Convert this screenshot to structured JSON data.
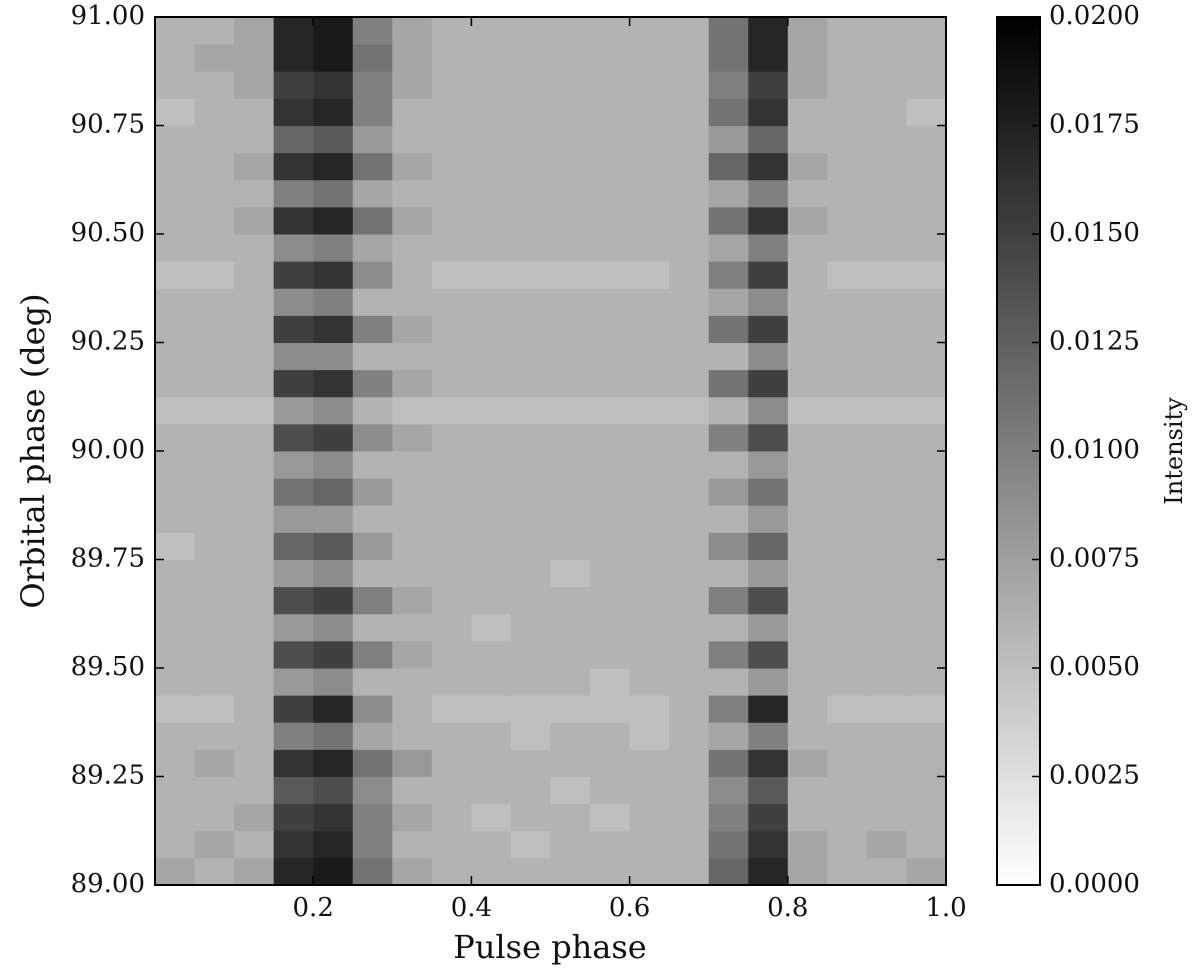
{
  "chart_data": {
    "type": "heatmap",
    "xlabel": "Pulse phase",
    "ylabel": "Orbital phase (deg)",
    "xlim": [
      0,
      1
    ],
    "ylim": [
      89,
      91
    ],
    "xticks": [
      0.2,
      0.4,
      0.6,
      0.8,
      {
        "value": 1,
        "label": "1.0"
      }
    ],
    "yticks": [
      {
        "value": 89,
        "label": "89.00"
      },
      89.25,
      {
        "value": 89.5,
        "label": "89.50"
      },
      89.75,
      {
        "value": 90,
        "label": "90.00"
      },
      90.25,
      {
        "value": 90.5,
        "label": "90.50"
      },
      90.75,
      {
        "value": 91,
        "label": "91.00"
      }
    ],
    "colormap": "Greys",
    "colorbar": {
      "label": "Intensity",
      "lim": [
        0,
        0.02
      ],
      "ticks": [
        {
          "value": 0,
          "label": "0.0000"
        },
        0.0025,
        {
          "value": 0.005,
          "label": "0.0050"
        },
        0.0075,
        {
          "value": 0.01,
          "label": "0.0100"
        },
        0.0125,
        {
          "value": 0.015,
          "label": "0.0150"
        },
        0.0175,
        {
          "value": 0.02,
          "label": "0.0200"
        }
      ]
    },
    "z": [
      [
        0.007,
        0.006,
        0.007,
        0.017,
        0.018,
        0.011,
        0.007,
        0.006,
        0.006,
        0.006,
        0.006,
        0.006,
        0.006,
        0.006,
        0.012,
        0.017,
        0.007,
        0.006,
        0.006,
        0.007
      ],
      [
        0.006,
        0.007,
        0.006,
        0.016,
        0.017,
        0.01,
        0.006,
        0.006,
        0.006,
        0.005,
        0.006,
        0.006,
        0.006,
        0.006,
        0.011,
        0.016,
        0.007,
        0.006,
        0.007,
        0.006
      ],
      [
        0.006,
        0.006,
        0.007,
        0.015,
        0.016,
        0.01,
        0.007,
        0.006,
        0.005,
        0.006,
        0.006,
        0.005,
        0.006,
        0.006,
        0.01,
        0.015,
        0.006,
        0.006,
        0.006,
        0.006
      ],
      [
        0.006,
        0.006,
        0.006,
        0.013,
        0.014,
        0.009,
        0.006,
        0.006,
        0.006,
        0.006,
        0.005,
        0.006,
        0.006,
        0.006,
        0.009,
        0.013,
        0.006,
        0.006,
        0.006,
        0.006
      ],
      [
        0.006,
        0.007,
        0.006,
        0.016,
        0.017,
        0.011,
        0.008,
        0.006,
        0.006,
        0.006,
        0.006,
        0.006,
        0.006,
        0.006,
        0.011,
        0.016,
        0.007,
        0.006,
        0.006,
        0.006
      ],
      [
        0.006,
        0.006,
        0.006,
        0.01,
        0.011,
        0.007,
        0.006,
        0.006,
        0.006,
        0.005,
        0.006,
        0.006,
        0.005,
        0.006,
        0.007,
        0.01,
        0.006,
        0.006,
        0.006,
        0.006
      ],
      [
        0.005,
        0.005,
        0.006,
        0.015,
        0.017,
        0.009,
        0.006,
        0.005,
        0.005,
        0.005,
        0.005,
        0.005,
        0.005,
        0.006,
        0.01,
        0.017,
        0.006,
        0.005,
        0.005,
        0.005
      ],
      [
        0.006,
        0.006,
        0.006,
        0.008,
        0.009,
        0.006,
        0.006,
        0.006,
        0.006,
        0.006,
        0.006,
        0.005,
        0.006,
        0.006,
        0.006,
        0.008,
        0.006,
        0.006,
        0.006,
        0.006
      ],
      [
        0.006,
        0.006,
        0.006,
        0.014,
        0.015,
        0.01,
        0.007,
        0.006,
        0.006,
        0.006,
        0.006,
        0.006,
        0.006,
        0.006,
        0.01,
        0.014,
        0.006,
        0.006,
        0.006,
        0.006
      ],
      [
        0.006,
        0.006,
        0.006,
        0.008,
        0.009,
        0.006,
        0.006,
        0.006,
        0.005,
        0.006,
        0.006,
        0.006,
        0.006,
        0.006,
        0.006,
        0.008,
        0.006,
        0.006,
        0.006,
        0.006
      ],
      [
        0.006,
        0.006,
        0.006,
        0.014,
        0.015,
        0.01,
        0.007,
        0.006,
        0.006,
        0.006,
        0.006,
        0.006,
        0.006,
        0.006,
        0.01,
        0.014,
        0.006,
        0.006,
        0.006,
        0.006
      ],
      [
        0.006,
        0.006,
        0.006,
        0.008,
        0.009,
        0.006,
        0.006,
        0.006,
        0.006,
        0.006,
        0.005,
        0.006,
        0.006,
        0.006,
        0.006,
        0.008,
        0.006,
        0.006,
        0.006,
        0.006
      ],
      [
        0.005,
        0.006,
        0.006,
        0.012,
        0.013,
        0.008,
        0.006,
        0.006,
        0.006,
        0.006,
        0.006,
        0.006,
        0.006,
        0.006,
        0.009,
        0.012,
        0.006,
        0.006,
        0.006,
        0.006
      ],
      [
        0.006,
        0.006,
        0.006,
        0.008,
        0.008,
        0.006,
        0.006,
        0.006,
        0.006,
        0.006,
        0.006,
        0.006,
        0.006,
        0.006,
        0.006,
        0.008,
        0.006,
        0.006,
        0.006,
        0.006
      ],
      [
        0.006,
        0.006,
        0.006,
        0.011,
        0.012,
        0.008,
        0.006,
        0.006,
        0.006,
        0.006,
        0.006,
        0.006,
        0.006,
        0.006,
        0.008,
        0.011,
        0.006,
        0.006,
        0.006,
        0.006
      ],
      [
        0.006,
        0.006,
        0.006,
        0.008,
        0.009,
        0.006,
        0.006,
        0.006,
        0.006,
        0.006,
        0.006,
        0.006,
        0.006,
        0.006,
        0.006,
        0.008,
        0.006,
        0.006,
        0.006,
        0.006
      ],
      [
        0.006,
        0.006,
        0.006,
        0.014,
        0.015,
        0.009,
        0.007,
        0.006,
        0.006,
        0.006,
        0.006,
        0.006,
        0.006,
        0.006,
        0.01,
        0.014,
        0.006,
        0.006,
        0.006,
        0.006
      ],
      [
        0.005,
        0.005,
        0.005,
        0.008,
        0.009,
        0.006,
        0.005,
        0.005,
        0.005,
        0.005,
        0.005,
        0.005,
        0.005,
        0.005,
        0.006,
        0.009,
        0.005,
        0.005,
        0.005,
        0.005
      ],
      [
        0.006,
        0.006,
        0.006,
        0.015,
        0.016,
        0.01,
        0.007,
        0.006,
        0.006,
        0.006,
        0.006,
        0.006,
        0.006,
        0.006,
        0.011,
        0.015,
        0.006,
        0.006,
        0.006,
        0.006
      ],
      [
        0.006,
        0.006,
        0.006,
        0.009,
        0.009,
        0.006,
        0.006,
        0.006,
        0.006,
        0.006,
        0.006,
        0.006,
        0.006,
        0.006,
        0.006,
        0.009,
        0.006,
        0.006,
        0.006,
        0.006
      ],
      [
        0.006,
        0.006,
        0.006,
        0.015,
        0.016,
        0.01,
        0.007,
        0.006,
        0.006,
        0.006,
        0.006,
        0.006,
        0.006,
        0.006,
        0.011,
        0.015,
        0.006,
        0.006,
        0.006,
        0.006
      ],
      [
        0.006,
        0.006,
        0.006,
        0.009,
        0.01,
        0.006,
        0.006,
        0.006,
        0.006,
        0.006,
        0.006,
        0.006,
        0.006,
        0.006,
        0.007,
        0.009,
        0.006,
        0.006,
        0.006,
        0.006
      ],
      [
        0.005,
        0.005,
        0.006,
        0.015,
        0.016,
        0.009,
        0.006,
        0.005,
        0.005,
        0.005,
        0.005,
        0.005,
        0.005,
        0.006,
        0.01,
        0.015,
        0.006,
        0.005,
        0.005,
        0.005
      ],
      [
        0.006,
        0.006,
        0.006,
        0.009,
        0.01,
        0.007,
        0.006,
        0.006,
        0.006,
        0.006,
        0.006,
        0.006,
        0.006,
        0.006,
        0.007,
        0.01,
        0.006,
        0.006,
        0.006,
        0.006
      ],
      [
        0.006,
        0.006,
        0.007,
        0.016,
        0.017,
        0.011,
        0.007,
        0.006,
        0.006,
        0.006,
        0.006,
        0.006,
        0.006,
        0.006,
        0.011,
        0.016,
        0.007,
        0.006,
        0.006,
        0.006
      ],
      [
        0.006,
        0.006,
        0.006,
        0.01,
        0.011,
        0.007,
        0.006,
        0.006,
        0.006,
        0.006,
        0.006,
        0.006,
        0.006,
        0.006,
        0.007,
        0.01,
        0.006,
        0.006,
        0.006,
        0.006
      ],
      [
        0.006,
        0.006,
        0.007,
        0.016,
        0.017,
        0.011,
        0.007,
        0.006,
        0.006,
        0.006,
        0.006,
        0.006,
        0.006,
        0.006,
        0.012,
        0.016,
        0.007,
        0.006,
        0.006,
        0.006
      ],
      [
        0.006,
        0.006,
        0.006,
        0.012,
        0.013,
        0.008,
        0.006,
        0.006,
        0.006,
        0.006,
        0.006,
        0.006,
        0.006,
        0.006,
        0.008,
        0.012,
        0.006,
        0.006,
        0.006,
        0.006
      ],
      [
        0.005,
        0.006,
        0.006,
        0.016,
        0.017,
        0.01,
        0.006,
        0.006,
        0.006,
        0.006,
        0.006,
        0.006,
        0.006,
        0.006,
        0.011,
        0.016,
        0.006,
        0.006,
        0.006,
        0.005
      ],
      [
        0.006,
        0.006,
        0.007,
        0.015,
        0.016,
        0.01,
        0.007,
        0.006,
        0.006,
        0.006,
        0.006,
        0.006,
        0.006,
        0.006,
        0.01,
        0.015,
        0.007,
        0.006,
        0.006,
        0.006
      ],
      [
        0.006,
        0.007,
        0.007,
        0.017,
        0.018,
        0.011,
        0.007,
        0.006,
        0.006,
        0.006,
        0.006,
        0.006,
        0.006,
        0.006,
        0.011,
        0.017,
        0.007,
        0.006,
        0.006,
        0.006
      ],
      [
        0.006,
        0.006,
        0.007,
        0.017,
        0.018,
        0.01,
        0.007,
        0.006,
        0.006,
        0.006,
        0.006,
        0.006,
        0.006,
        0.006,
        0.011,
        0.017,
        0.007,
        0.006,
        0.006,
        0.006
      ]
    ]
  }
}
